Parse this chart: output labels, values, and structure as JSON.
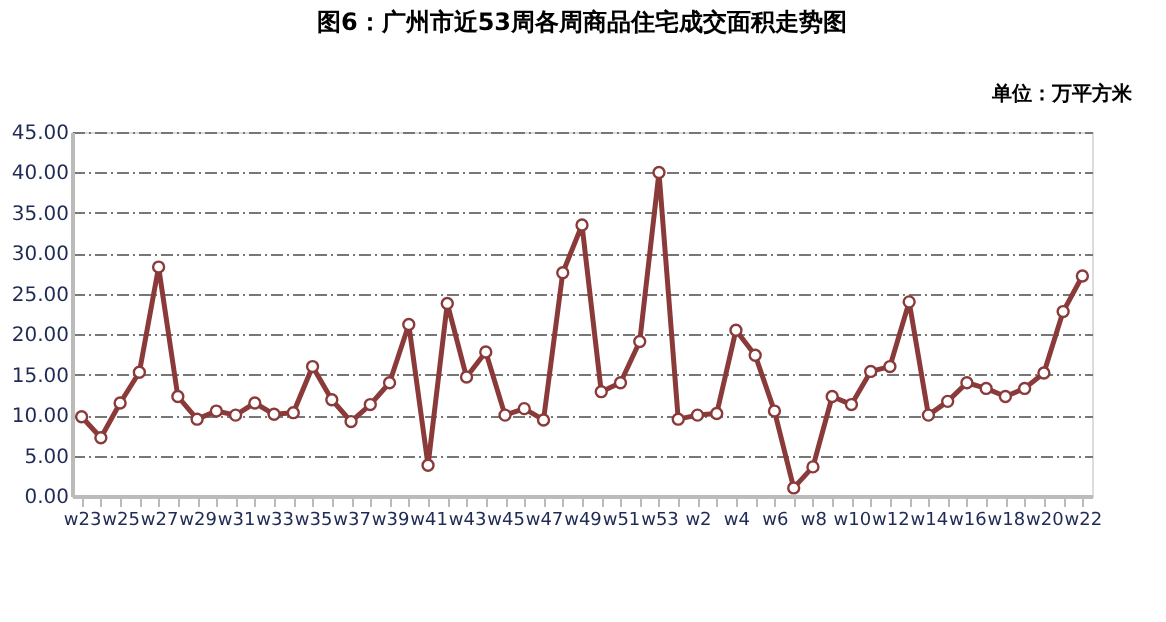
{
  "chart_data": {
    "type": "line",
    "title": "图6：广州市近53周各周商品住宅成交面积走势图",
    "annotations": [
      "单位：万平方米"
    ],
    "categories": [
      "w23",
      null,
      "w25",
      null,
      "w27",
      null,
      "w29",
      null,
      "w31",
      null,
      "w33",
      null,
      "w35",
      null,
      "w37",
      null,
      "w39",
      null,
      "w41",
      null,
      "w43",
      null,
      "w45",
      null,
      "w47",
      null,
      "w49",
      null,
      "w51",
      null,
      "w53",
      null,
      "w2",
      null,
      "w4",
      null,
      "w6",
      null,
      "w8",
      null,
      "w10",
      null,
      "w12",
      null,
      "w14",
      null,
      "w16",
      null,
      "w18",
      null,
      "w20",
      null,
      "w22"
    ],
    "series": [
      {
        "color": "#8b3a3a",
        "values": [
          9.8,
          7.2,
          11.5,
          15.3,
          28.3,
          12.3,
          9.5,
          10.5,
          10.0,
          11.5,
          10.1,
          10.3,
          16.0,
          11.9,
          9.2,
          11.3,
          14.0,
          21.2,
          3.8,
          23.8,
          14.7,
          17.8,
          10.0,
          10.8,
          9.4,
          27.6,
          33.5,
          12.9,
          14.0,
          19.1,
          40.0,
          9.5,
          10.0,
          10.2,
          20.5,
          17.4,
          10.5,
          1.0,
          3.6,
          12.3,
          11.3,
          15.4,
          16.0,
          24.0,
          10.0,
          11.7,
          14.0,
          13.3,
          12.3,
          13.3,
          15.2,
          22.8,
          27.2
        ]
      }
    ],
    "ylim": [
      0,
      45
    ],
    "yticks": [
      {
        "value": 0,
        "label": "0.00"
      },
      {
        "value": 5,
        "label": "5.00"
      },
      {
        "value": 10,
        "label": "10.00"
      },
      {
        "value": 15,
        "label": "15.00"
      },
      {
        "value": 20,
        "label": "20.00"
      },
      {
        "value": 25,
        "label": "25.00"
      },
      {
        "value": 30,
        "label": "30.00"
      },
      {
        "value": 35,
        "label": "35.00"
      },
      {
        "value": 40,
        "label": "40.00"
      },
      {
        "value": 45,
        "label": "45.00"
      }
    ],
    "grid": "y",
    "marker": "circle",
    "line_style": "solid"
  }
}
